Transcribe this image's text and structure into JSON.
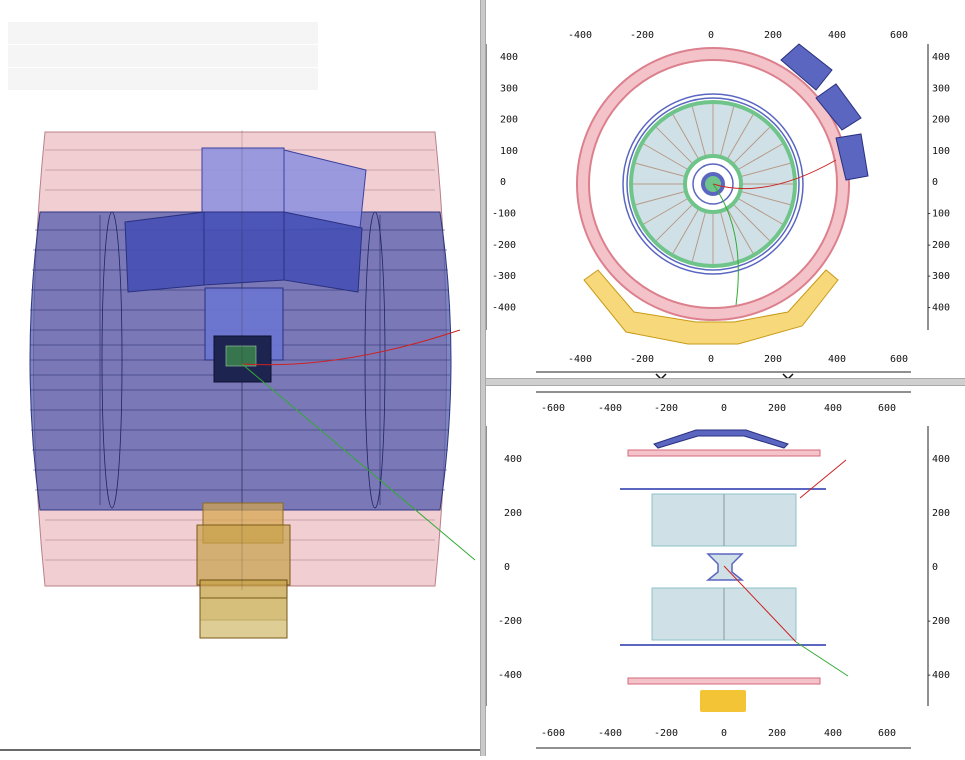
{
  "info_panel": {
    "rows": [
      "",
      "",
      ""
    ]
  },
  "views": {
    "rphi": {
      "x_ticks": [
        "-400",
        "-200",
        "0",
        "200",
        "400",
        "600"
      ],
      "y_ticks": [
        "400",
        "300",
        "200",
        "100",
        "0",
        "-100",
        "-200",
        "-300",
        "-400"
      ]
    },
    "rz": {
      "x_ticks": [
        "-600",
        "-400",
        "-200",
        "0",
        "200",
        "400",
        "600"
      ],
      "y_ticks": [
        "400",
        "200",
        "0",
        "-200",
        "-400"
      ]
    }
  },
  "colors": {
    "calo_outer": "#e6a6ad",
    "muon_blue": "#5a66c0",
    "tracker_fill": "#cfe1e6",
    "tracker_edge": "#6fc48a",
    "endcap_yellow": "#f3c436",
    "track_red": "#cc2222",
    "track_green": "#33aa33"
  }
}
